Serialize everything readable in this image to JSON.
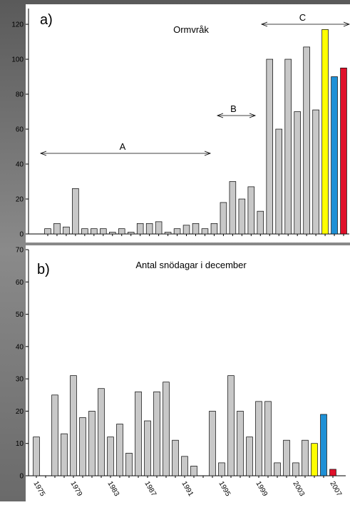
{
  "chart_data": [
    {
      "type": "bar",
      "panel_label": "a)",
      "title": "Ormvråk",
      "categories": [
        null,
        null,
        null,
        null,
        null,
        null,
        null,
        null,
        null,
        null,
        null,
        null,
        null,
        null,
        null,
        null,
        null,
        null,
        null,
        null,
        null,
        null,
        null,
        null,
        null,
        null,
        null,
        null,
        null,
        null,
        null,
        null,
        null
      ],
      "values": [
        3,
        6,
        4,
        26,
        3,
        3,
        3,
        1,
        3,
        1,
        6,
        6,
        7,
        1,
        3,
        5,
        6,
        3,
        6,
        18,
        30,
        20,
        27,
        13,
        100,
        60,
        100,
        70,
        107,
        71,
        117,
        90,
        95
      ],
      "colors": [
        "#c8c8c8",
        "#c8c8c8",
        "#c8c8c8",
        "#c8c8c8",
        "#c8c8c8",
        "#c8c8c8",
        "#c8c8c8",
        "#c8c8c8",
        "#c8c8c8",
        "#c8c8c8",
        "#c8c8c8",
        "#c8c8c8",
        "#c8c8c8",
        "#c8c8c8",
        "#c8c8c8",
        "#c8c8c8",
        "#c8c8c8",
        "#c8c8c8",
        "#c8c8c8",
        "#c8c8c8",
        "#c8c8c8",
        "#c8c8c8",
        "#c8c8c8",
        "#c8c8c8",
        "#c8c8c8",
        "#c8c8c8",
        "#c8c8c8",
        "#c8c8c8",
        "#c8c8c8",
        "#c8c8c8",
        "#ffff00",
        "#1e90d6",
        "#e0102a"
      ],
      "ylim": [
        0,
        129
      ],
      "yticks": [
        0,
        20,
        40,
        60,
        80,
        100,
        120
      ],
      "annotations": [
        "A",
        "B",
        "C"
      ]
    },
    {
      "type": "bar",
      "panel_label": "b)",
      "title": "Antal snödagar i december",
      "categories": [
        "1975",
        null,
        null,
        null,
        "1979",
        null,
        null,
        null,
        "1983",
        null,
        null,
        null,
        "1987",
        null,
        null,
        null,
        "1991",
        null,
        null,
        null,
        "1995",
        null,
        null,
        null,
        "1999",
        null,
        null,
        null,
        "2003",
        null,
        null,
        null,
        "2007"
      ],
      "values": [
        12,
        0,
        25,
        13,
        31,
        18,
        20,
        27,
        12,
        16,
        7,
        26,
        17,
        26,
        29,
        11,
        6,
        3,
        0,
        20,
        4,
        31,
        20,
        12,
        23,
        23,
        4,
        11,
        4,
        11,
        10,
        19,
        2
      ],
      "colors": [
        "#c8c8c8",
        "#c8c8c8",
        "#c8c8c8",
        "#c8c8c8",
        "#c8c8c8",
        "#c8c8c8",
        "#c8c8c8",
        "#c8c8c8",
        "#c8c8c8",
        "#c8c8c8",
        "#c8c8c8",
        "#c8c8c8",
        "#c8c8c8",
        "#c8c8c8",
        "#c8c8c8",
        "#c8c8c8",
        "#c8c8c8",
        "#c8c8c8",
        "#c8c8c8",
        "#c8c8c8",
        "#c8c8c8",
        "#c8c8c8",
        "#c8c8c8",
        "#c8c8c8",
        "#c8c8c8",
        "#c8c8c8",
        "#c8c8c8",
        "#c8c8c8",
        "#c8c8c8",
        "#c8c8c8",
        "#ffff00",
        "#1e90d6",
        "#e0102a"
      ],
      "ylim": [
        0,
        70
      ],
      "yticks": [
        0,
        10,
        20,
        30,
        40,
        50,
        60,
        70
      ]
    }
  ]
}
